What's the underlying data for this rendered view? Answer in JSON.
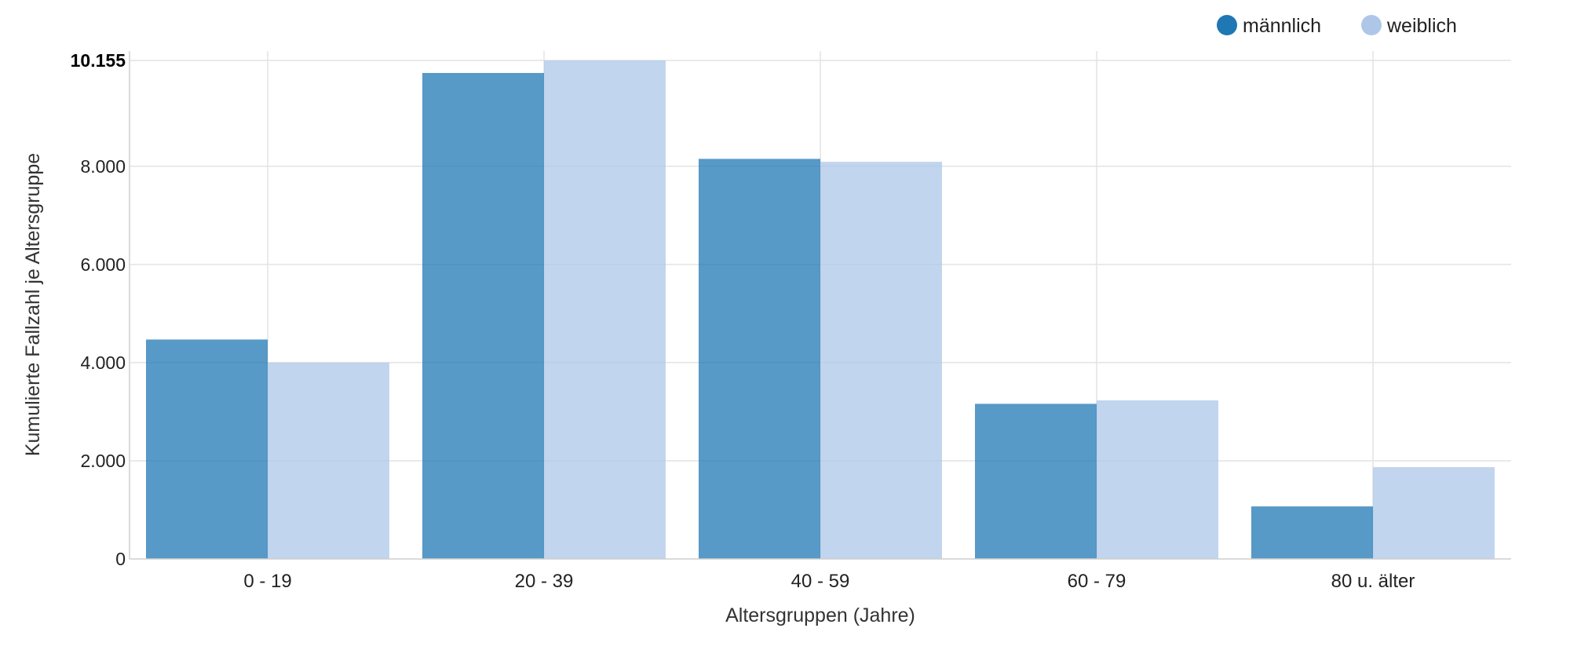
{
  "chart_data": {
    "type": "bar",
    "categories": [
      "0 - 19",
      "20 - 39",
      "40 - 59",
      "60 - 79",
      "80 u. älter"
    ],
    "series": [
      {
        "name": "männlich",
        "color": "#1f77b4",
        "values": [
          4470,
          9900,
          8150,
          3160,
          1070
        ]
      },
      {
        "name": "weiblich",
        "color": "#aec7e8",
        "values": [
          4000,
          10155,
          8090,
          3230,
          1870
        ]
      }
    ],
    "xlabel": "Altersgruppen (Jahre)",
    "ylabel": "Kumulierte Fallzahl je Altersgruppe",
    "ylim": [
      0,
      10155
    ],
    "yticks": [
      {
        "value": 0,
        "label": "0"
      },
      {
        "value": 2000,
        "label": "2.000"
      },
      {
        "value": 4000,
        "label": "4.000"
      },
      {
        "value": 6000,
        "label": "6.000"
      },
      {
        "value": 8000,
        "label": "8.000"
      },
      {
        "value": 10155,
        "label": "10.155"
      }
    ],
    "grid": true,
    "legend_position": "top-right"
  }
}
